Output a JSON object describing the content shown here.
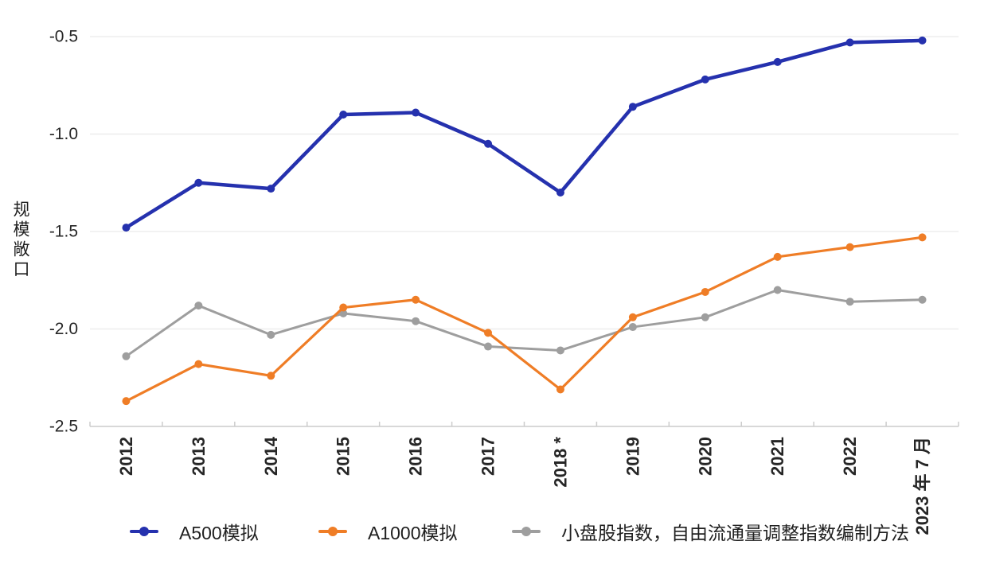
{
  "y_axis_title": "规模敞口",
  "chart_data": {
    "type": "line",
    "title": "",
    "xlabel": "",
    "ylabel": "规模敞口",
    "categories": [
      "2012",
      "2013",
      "2014",
      "2015",
      "2016",
      "2017",
      "2018 *",
      "2019",
      "2020",
      "2021",
      "2022",
      "2023 年 7 月"
    ],
    "series": [
      {
        "name": "A500模拟",
        "color": "#2531AE",
        "line_width": 4.5,
        "values": [
          -1.48,
          -1.25,
          -1.28,
          -0.9,
          -0.89,
          -1.05,
          -1.3,
          -0.86,
          -0.72,
          -0.63,
          -0.53,
          -0.52
        ]
      },
      {
        "name": "A1000模拟",
        "color": "#EF7D26",
        "line_width": 3.2,
        "values": [
          -2.37,
          -2.18,
          -2.24,
          -1.89,
          -1.85,
          -2.02,
          -2.31,
          -1.94,
          -1.81,
          -1.63,
          -1.58,
          -1.53
        ]
      },
      {
        "name": "小盘股指数，自由流通量调整指数编制方法",
        "color": "#9E9E9E",
        "line_width": 3,
        "values": [
          -2.14,
          -1.88,
          -2.03,
          -1.92,
          -1.96,
          -2.09,
          -2.11,
          -1.99,
          -1.94,
          -1.8,
          -1.86,
          -1.85
        ]
      }
    ],
    "y_ticks": [
      -0.5,
      -1.0,
      -1.5,
      -2.0,
      -2.5
    ],
    "ylim": [
      -2.5,
      -0.5
    ],
    "grid": true,
    "legend_position": "bottom"
  },
  "colors": {
    "grid_line": "#ededed",
    "axis_line": "#cccccc",
    "tick_mark": "#cccccc",
    "tick_label": "#262626"
  },
  "legend_x_positions": [
    163,
    400,
    643
  ]
}
